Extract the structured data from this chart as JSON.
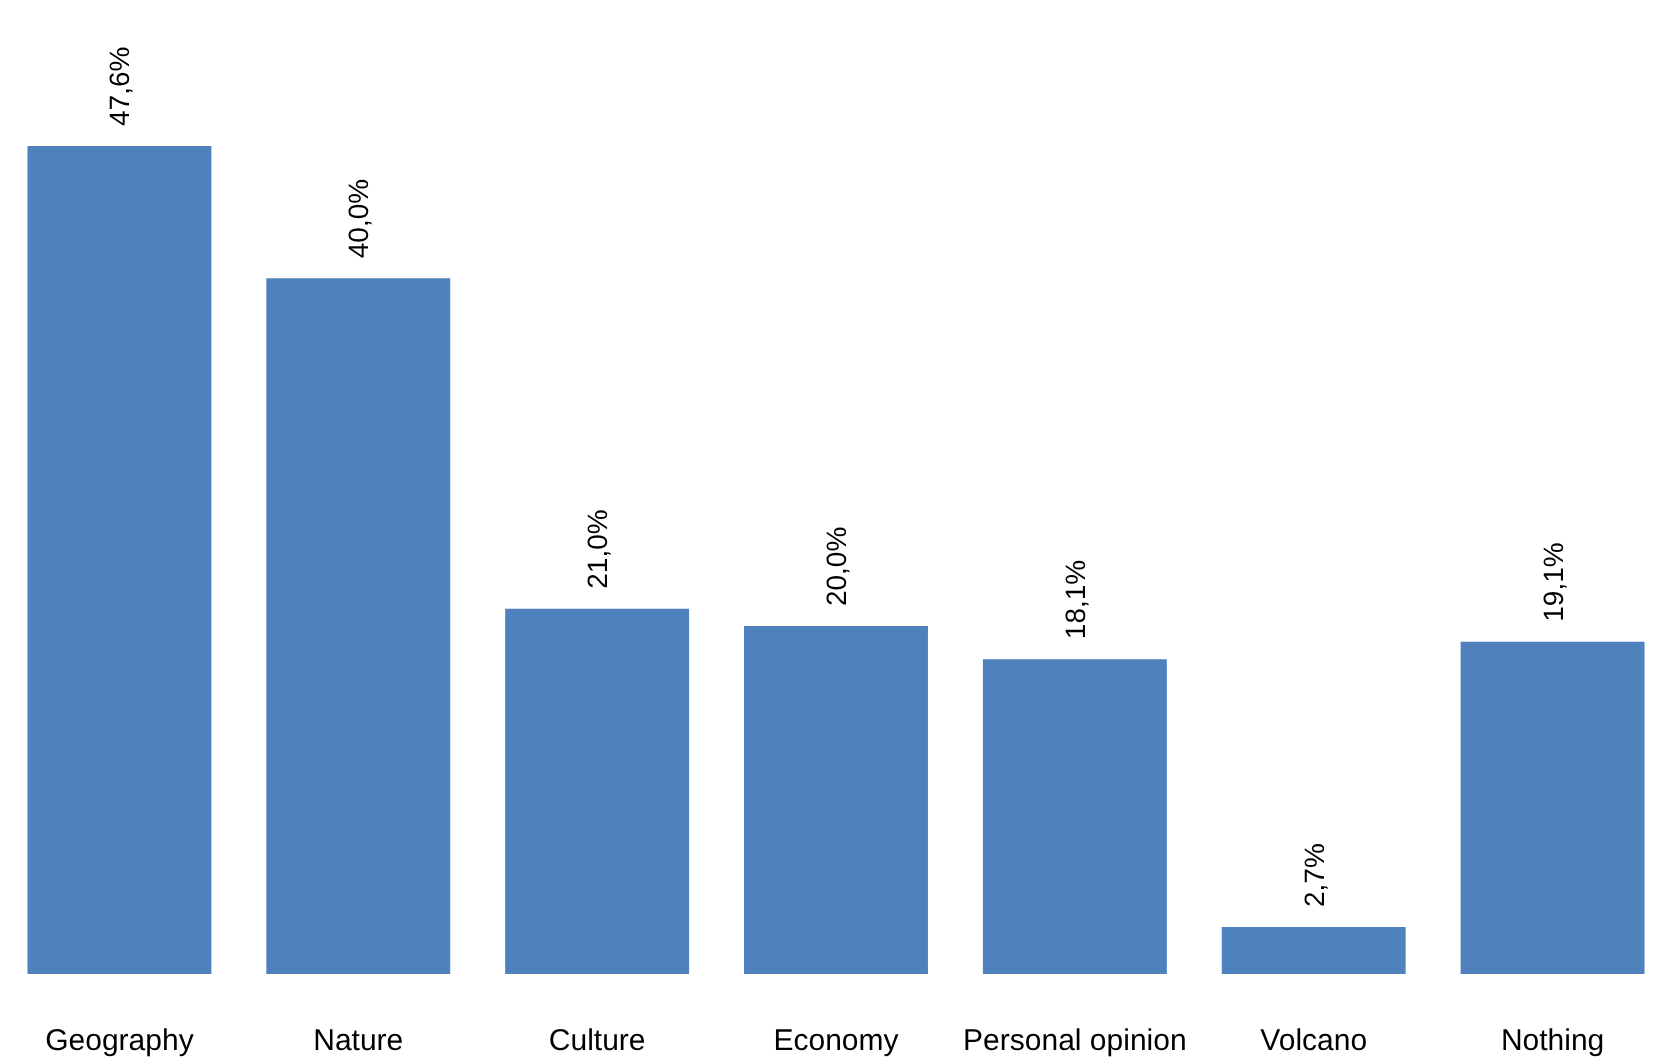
{
  "chart_data": {
    "type": "bar",
    "categories": [
      "Geography",
      "Nature",
      "Culture",
      "Economy",
      "Personal opinion",
      "Volcano",
      "Nothing"
    ],
    "values": [
      47.6,
      40.0,
      21.0,
      20.0,
      18.1,
      2.7,
      19.1
    ],
    "value_labels": [
      "47,6%",
      "40,0%",
      "21,0%",
      "20,0%",
      "18,1%",
      "2,7%",
      "19,1%"
    ],
    "color": "#4f81bd",
    "tick_labels": "x"
  }
}
